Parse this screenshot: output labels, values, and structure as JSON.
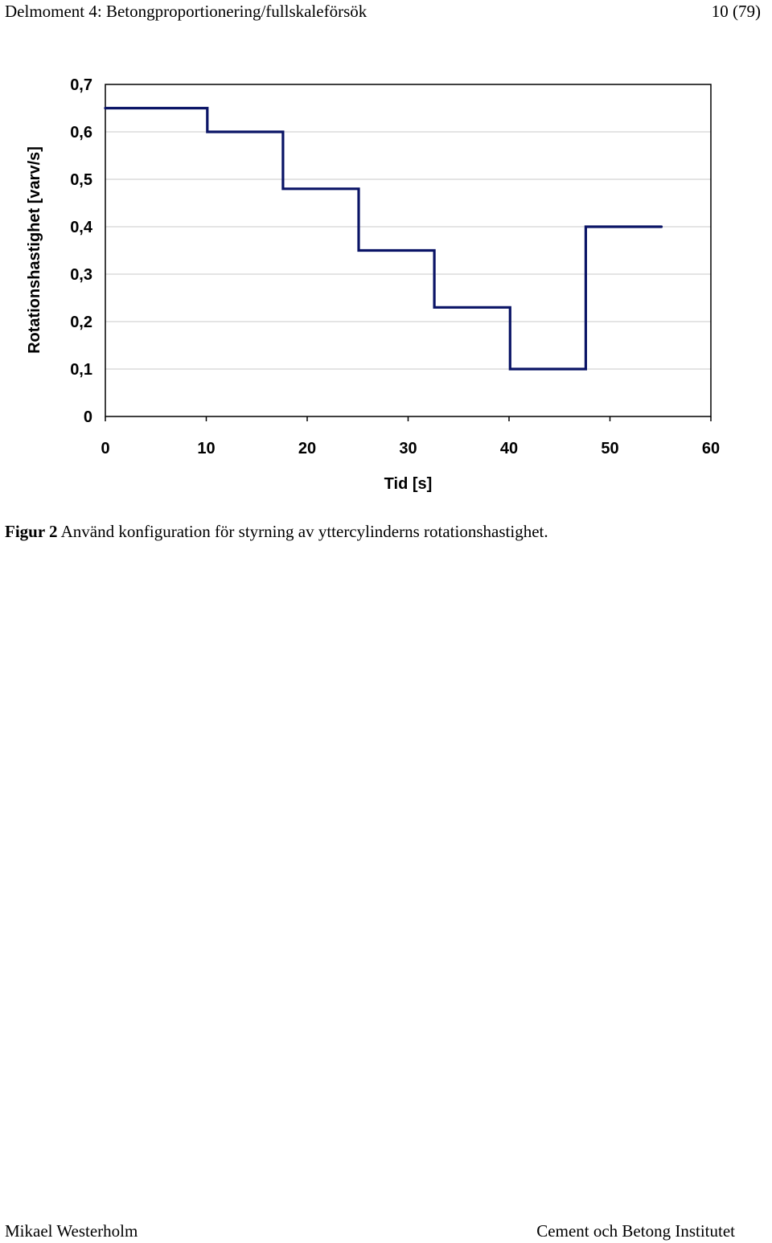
{
  "header": {
    "title": "Delmoment 4: Betongproportionering/fullskaleförsök",
    "page": "10 (79)"
  },
  "chart_data": {
    "type": "line",
    "step": true,
    "title": "",
    "xlabel": "Tid [s]",
    "ylabel": "Rotationshastighet [varv/s]",
    "xlim": [
      0,
      60
    ],
    "ylim": [
      0,
      0.7
    ],
    "x_ticks": [
      "0",
      "10",
      "20",
      "30",
      "40",
      "50",
      "60"
    ],
    "y_ticks": [
      "0",
      "0,1",
      "0,2",
      "0,3",
      "0,4",
      "0,5",
      "0,6",
      "0,7"
    ],
    "grid": "horizontal",
    "legend": "none",
    "color": "#0a1466",
    "x": [
      0,
      10.1,
      10.1,
      17.6,
      17.6,
      25.1,
      25.1,
      32.6,
      32.6,
      40.1,
      40.1,
      47.6,
      47.6,
      55.1
    ],
    "y": [
      0.65,
      0.65,
      0.6,
      0.6,
      0.48,
      0.48,
      0.35,
      0.35,
      0.23,
      0.23,
      0.1,
      0.1,
      0.4,
      0.4
    ]
  },
  "caption": {
    "label": "Figur 2",
    "text": "Använd konfiguration för styrning av yttercylinderns rotationshastighet."
  },
  "footer": {
    "left": "Mikael Westerholm",
    "right": "Cement och Betong Institutet"
  }
}
